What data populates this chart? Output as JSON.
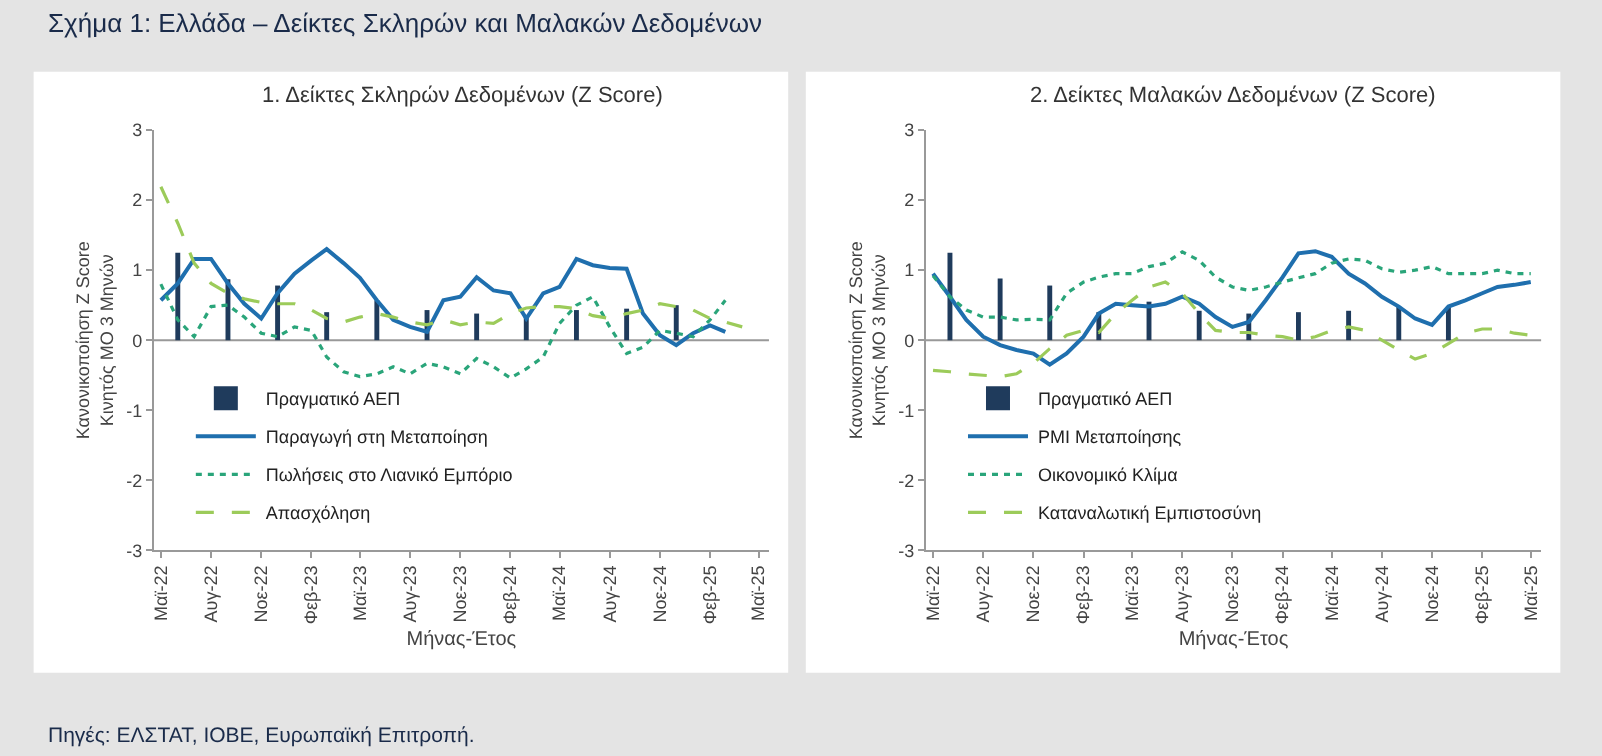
{
  "chart_data": [
    {
      "type": "line",
      "title": "1. Δείκτες Σκληρών Δεδομένων (Z Score)",
      "xlabel": "Μήνας-Έτος",
      "ylabel": "Κανονικοποίηση Z Score\nΚινητός ΜΟ 3 Μηνών",
      "annotations": [
        "Σχήμα 1: Ελλάδα – Δείκτες Σκληρών και Μαλακών Δεδομένων",
        "Πηγές: ΕΛΣΤΑΤ, ΙΟΒΕ, Ευρωπαϊκή Επιτροπή."
      ],
      "x": [
        "2022-05",
        "2022-06",
        "2022-07",
        "2022-08",
        "2022-09",
        "2022-10",
        "2022-11",
        "2022-12",
        "2023-01",
        "2023-02",
        "2023-03",
        "2023-04",
        "2023-05",
        "2023-06",
        "2023-07",
        "2023-08",
        "2023-09",
        "2023-10",
        "2023-11",
        "2023-12",
        "2024-01",
        "2024-02",
        "2024-03",
        "2024-04",
        "2024-05",
        "2024-06",
        "2024-07",
        "2024-08",
        "2024-09",
        "2024-10",
        "2024-11",
        "2024-12",
        "2025-01",
        "2025-02",
        "2025-03",
        "2025-04"
      ],
      "xlim": [
        "2022-04-18",
        "2025-05-20"
      ],
      "ylim": [
        -3,
        3
      ],
      "yticks": [
        -3,
        -2,
        -1,
        0,
        1,
        2,
        3
      ],
      "xticks": [
        {
          "value": "2022-05",
          "label": "Μαϊ-22"
        },
        {
          "value": "2022-08",
          "label": "Αυγ-22"
        },
        {
          "value": "2022-11",
          "label": "Νοε-22"
        },
        {
          "value": "2023-02",
          "label": "Φεβ-23"
        },
        {
          "value": "2023-05",
          "label": "Μαϊ-23"
        },
        {
          "value": "2023-08",
          "label": "Αυγ-23"
        },
        {
          "value": "2023-11",
          "label": "Νοε-23"
        },
        {
          "value": "2024-02",
          "label": "Φεβ-24"
        },
        {
          "value": "2024-05",
          "label": "Μαϊ-24"
        },
        {
          "value": "2024-08",
          "label": "Αυγ-24"
        },
        {
          "value": "2024-11",
          "label": "Νοε-24"
        },
        {
          "value": "2025-02",
          "label": "Φεβ-25"
        },
        {
          "value": "2025-05",
          "label": "Μαϊ-25"
        }
      ],
      "ref_lines": [
        {
          "axis": "y",
          "value": 0,
          "color": "#999999"
        }
      ],
      "legend": "bottom left",
      "series": [
        {
          "name": "Πραγματικό ΑΕΠ",
          "type": "bar",
          "color": "#1f3b5c",
          "x": [
            "2022-06",
            "2022-09",
            "2022-12",
            "2023-03",
            "2023-06",
            "2023-09",
            "2023-12",
            "2024-03",
            "2024-06",
            "2024-09",
            "2024-12"
          ],
          "values": [
            1.25,
            0.87,
            0.78,
            0.4,
            0.57,
            0.43,
            0.38,
            0.35,
            0.43,
            0.45,
            0.5
          ]
        },
        {
          "name": "Παραγωγή στη Μεταποίηση",
          "line_style": "solid",
          "color": "#1f6fae",
          "values": [
            0.57,
            0.81,
            1.16,
            1.16,
            0.81,
            0.52,
            0.31,
            0.67,
            0.95,
            1.14,
            1.3,
            1.1,
            0.89,
            0.57,
            0.29,
            0.19,
            0.12,
            0.57,
            0.62,
            0.9,
            0.71,
            0.67,
            0.31,
            0.67,
            0.76,
            1.16,
            1.07,
            1.03,
            1.02,
            0.38,
            0.07,
            -0.07,
            0.1,
            0.21,
            0.12,
            null
          ]
        },
        {
          "name": "Πωλήσεις στο Λιανικό Εμπόριο",
          "line_style": "dotted",
          "color": "#2aa57a",
          "values": [
            0.8,
            0.29,
            0.05,
            0.48,
            0.5,
            0.33,
            0.1,
            0.05,
            0.19,
            0.14,
            -0.24,
            -0.45,
            -0.52,
            -0.48,
            -0.38,
            -0.48,
            -0.33,
            -0.38,
            -0.48,
            -0.26,
            -0.38,
            -0.54,
            -0.41,
            -0.24,
            0.24,
            0.5,
            0.62,
            0.19,
            -0.19,
            -0.1,
            0.14,
            0.1,
            0.05,
            0.29,
            0.57,
            null
          ]
        },
        {
          "name": "Απασχόληση",
          "line_style": "dashed",
          "color": "#9ccb5a",
          "values": [
            2.19,
            1.67,
            1.1,
            0.81,
            0.67,
            0.59,
            0.54,
            0.52,
            0.52,
            0.43,
            0.31,
            0.26,
            0.33,
            0.38,
            0.33,
            0.26,
            0.22,
            0.29,
            0.22,
            0.26,
            0.24,
            0.38,
            0.46,
            0.48,
            0.48,
            0.45,
            0.35,
            0.31,
            0.38,
            0.43,
            0.52,
            0.48,
            0.43,
            0.31,
            0.26,
            0.19
          ]
        }
      ]
    },
    {
      "type": "line",
      "title": "2. Δείκτες Μαλακών Δεδομένων (Z Score)",
      "xlabel": "Μήνας-Έτος",
      "ylabel": "Κανονικοποίηση Z Score\nΚινητός ΜΟ 3 Μηνών",
      "x": [
        "2022-05",
        "2022-06",
        "2022-07",
        "2022-08",
        "2022-09",
        "2022-10",
        "2022-11",
        "2022-12",
        "2023-01",
        "2023-02",
        "2023-03",
        "2023-04",
        "2023-05",
        "2023-06",
        "2023-07",
        "2023-08",
        "2023-09",
        "2023-10",
        "2023-11",
        "2023-12",
        "2024-01",
        "2024-02",
        "2024-03",
        "2024-04",
        "2024-05",
        "2024-06",
        "2024-07",
        "2024-08",
        "2024-09",
        "2024-10",
        "2024-11",
        "2024-12",
        "2025-01",
        "2025-02",
        "2025-03",
        "2025-04",
        "2025-05"
      ],
      "xlim": [
        "2022-04-18",
        "2025-05-20"
      ],
      "ylim": [
        -3,
        3
      ],
      "yticks": [
        -3,
        -2,
        -1,
        0,
        1,
        2,
        3
      ],
      "xticks": [
        {
          "value": "2022-05",
          "label": "Μαϊ-22"
        },
        {
          "value": "2022-08",
          "label": "Αυγ-22"
        },
        {
          "value": "2022-11",
          "label": "Νοε-22"
        },
        {
          "value": "2023-02",
          "label": "Φεβ-23"
        },
        {
          "value": "2023-05",
          "label": "Μαϊ-23"
        },
        {
          "value": "2023-08",
          "label": "Αυγ-23"
        },
        {
          "value": "2023-11",
          "label": "Νοε-23"
        },
        {
          "value": "2024-02",
          "label": "Φεβ-24"
        },
        {
          "value": "2024-05",
          "label": "Μαϊ-24"
        },
        {
          "value": "2024-08",
          "label": "Αυγ-24"
        },
        {
          "value": "2024-11",
          "label": "Νοε-24"
        },
        {
          "value": "2025-02",
          "label": "Φεβ-25"
        },
        {
          "value": "2025-05",
          "label": "Μαϊ-25"
        }
      ],
      "ref_lines": [
        {
          "axis": "y",
          "value": 0,
          "color": "#999999"
        }
      ],
      "legend": "bottom left",
      "series": [
        {
          "name": "Πραγματικό ΑΕΠ",
          "type": "bar",
          "color": "#1f3b5c",
          "x": [
            "2022-06",
            "2022-09",
            "2022-12",
            "2023-03",
            "2023-06",
            "2023-09",
            "2023-12",
            "2024-03",
            "2024-06",
            "2024-09",
            "2024-12"
          ],
          "values": [
            1.25,
            0.88,
            0.78,
            0.4,
            0.55,
            0.42,
            0.38,
            0.4,
            0.42,
            0.48,
            0.48
          ]
        },
        {
          "name": "PMI Μεταποίησης",
          "line_style": "solid",
          "color": "#1f6fae",
          "values": [
            0.95,
            0.62,
            0.29,
            0.05,
            -0.07,
            -0.14,
            -0.19,
            -0.35,
            -0.19,
            0.05,
            0.38,
            0.52,
            0.5,
            0.48,
            0.52,
            0.62,
            0.52,
            0.33,
            0.19,
            0.26,
            0.57,
            0.9,
            1.24,
            1.27,
            1.19,
            0.95,
            0.81,
            0.62,
            0.48,
            0.31,
            0.22,
            0.48,
            0.57,
            0.67,
            0.76,
            0.79,
            0.83
          ]
        },
        {
          "name": "Οικονομικό Κλίμα",
          "line_style": "dotted",
          "color": "#2aa57a",
          "values": [
            0.92,
            0.62,
            0.43,
            0.33,
            0.33,
            0.29,
            0.3,
            0.29,
            0.67,
            0.83,
            0.9,
            0.95,
            0.95,
            1.05,
            1.1,
            1.26,
            1.14,
            0.9,
            0.76,
            0.71,
            0.76,
            0.83,
            0.89,
            0.95,
            1.1,
            1.16,
            1.14,
            1.02,
            0.97,
            1.0,
            1.05,
            0.95,
            0.95,
            0.95,
            1.0,
            0.95,
            0.95
          ]
        },
        {
          "name": "Καταναλωτική Εμπιστοσύνη",
          "line_style": "dashed",
          "color": "#9ccb5a",
          "values": [
            -0.43,
            -0.45,
            -0.48,
            -0.5,
            -0.52,
            -0.48,
            -0.33,
            -0.12,
            0.07,
            0.14,
            0.11,
            0.38,
            0.57,
            0.76,
            0.83,
            0.67,
            0.38,
            0.14,
            0.11,
            0.11,
            0.07,
            0.05,
            0.0,
            0.05,
            0.14,
            0.19,
            0.14,
            0.0,
            -0.14,
            -0.27,
            -0.19,
            -0.05,
            0.1,
            0.16,
            0.16,
            0.1,
            0.07
          ]
        }
      ]
    }
  ]
}
